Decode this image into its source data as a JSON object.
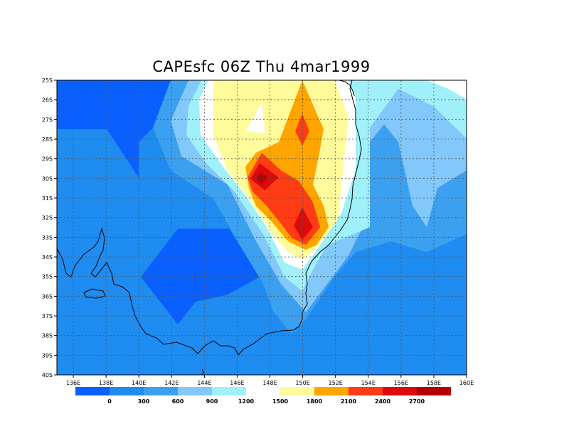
{
  "title": "CAPEsfc 06Z Thu 4mar1999",
  "map": {
    "lon_range": [
      135,
      160
    ],
    "lat_range": [
      -40,
      -25
    ],
    "grid": true,
    "lon_ticks": [
      "136E",
      "138E",
      "140E",
      "142E",
      "144E",
      "146E",
      "148E",
      "150E",
      "152E",
      "154E",
      "156E",
      "158E",
      "160E"
    ],
    "lat_ticks": [
      "25S",
      "26S",
      "27S",
      "28S",
      "29S",
      "30S",
      "31S",
      "32S",
      "33S",
      "34S",
      "35S",
      "36S",
      "37S",
      "38S",
      "39S",
      "40S"
    ]
  },
  "colorbar": {
    "colors": [
      "#0a60ff",
      "#1e8cf0",
      "#3ca0f0",
      "#82c8fa",
      "#a0f0fa",
      "#ffffff",
      "#fffa9a",
      "#ffa500",
      "#ff3c14",
      "#dc0a0a",
      "#b40000"
    ],
    "labels": [
      "0",
      "300",
      "600",
      "900",
      "1200",
      "1500",
      "1800",
      "2100",
      "2400",
      "2700"
    ]
  }
}
